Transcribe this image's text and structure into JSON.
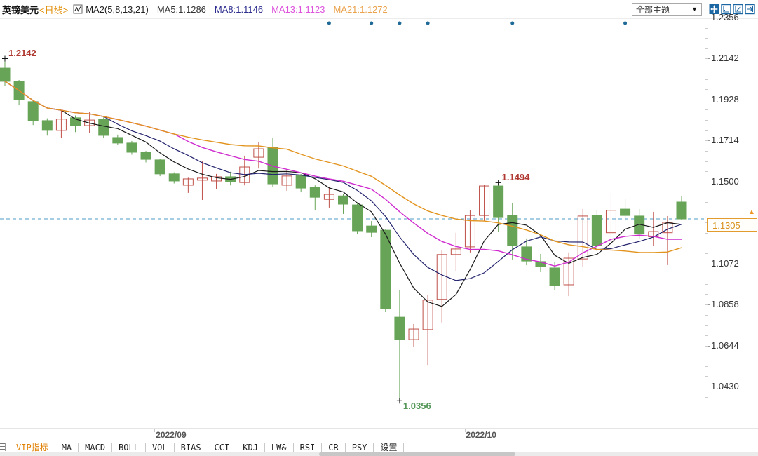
{
  "header": {
    "symbol": "英镑美元",
    "period": "<日线>",
    "ma_group": "MA2(5,8,13,21)",
    "ma5": "MA5:1.1286",
    "ma8": "MA8:1.1146",
    "ma13": "MA13:1.1123",
    "ma21": "MA21:1.1272",
    "theme_dropdown": "全部主题",
    "dropdown_arrow": "▼",
    "icons": [
      "move-icon",
      "axis-scale-icon",
      "axis-pointer-icon",
      "pan-right-icon"
    ]
  },
  "y_axis": {
    "labels": [
      "1.2356",
      "1.2142",
      "1.1928",
      "1.1714",
      "1.1500",
      "1.1072",
      "1.0858",
      "1.0644",
      "1.0430"
    ],
    "current_price": "1.1305"
  },
  "x_axis": {
    "labels": [
      {
        "text": "2022/09",
        "candle": 12
      },
      {
        "text": "2022/10",
        "candle": 34
      }
    ]
  },
  "annotations": [
    {
      "text": "1.2142",
      "price": 1.2142,
      "candle": 0,
      "type": "high",
      "color": "#b03a33"
    },
    {
      "text": "1.1494",
      "price": 1.1494,
      "candle": 35,
      "type": "high",
      "color": "#b03a33"
    },
    {
      "text": "1.0356",
      "price": 1.0356,
      "candle": 28,
      "type": "low",
      "color": "#56985a"
    }
  ],
  "toolbar": {
    "tabs": [
      {
        "label": "VIP指标",
        "active": true
      },
      {
        "label": "MA",
        "active": false
      },
      {
        "label": "MACD",
        "active": false
      },
      {
        "label": "BOLL",
        "active": false
      },
      {
        "label": "VOL",
        "active": false
      },
      {
        "label": "BIAS",
        "active": false
      },
      {
        "label": "CCI",
        "active": false
      },
      {
        "label": "KDJ",
        "active": false
      },
      {
        "label": "LW&",
        "active": false
      },
      {
        "label": "RSI",
        "active": false
      },
      {
        "label": "CR",
        "active": false
      },
      {
        "label": "PSY",
        "active": false
      },
      {
        "label": "设置",
        "active": false
      }
    ]
  },
  "colors": {
    "up_candle": "#bf5048",
    "down_candle": "#67a457",
    "ma5_line": "#1a1a1a",
    "ma8_line": "#24246e",
    "ma13_line": "#cf2bcf",
    "ma21_line": "#e2941e",
    "price_line": "#4f9bc7",
    "event_dot": "#1f6a96",
    "price_box": "#e39b2d",
    "active_tab": "#e07f00"
  },
  "chart_data": {
    "type": "candlestick",
    "title": "英镑美元 日线 (GBP/USD daily)",
    "y_ticks": [
      1.2356,
      1.2142,
      1.1928,
      1.1714,
      1.15,
      1.1072,
      1.0858,
      1.0644,
      1.043
    ],
    "current_price": 1.1305,
    "high_annotation": 1.2142,
    "swing_high_annotation": 1.1494,
    "low_annotation": 1.0356,
    "ma_periods": [
      5,
      8,
      13,
      21
    ],
    "legend_position": "top",
    "grid": false,
    "event_marker_candles": [
      23,
      26,
      28,
      30,
      36,
      44
    ],
    "candles": [
      {
        "o": 1.2092,
        "h": 1.2142,
        "l": 1.2001,
        "c": 1.2023
      },
      {
        "o": 1.2023,
        "h": 1.203,
        "l": 1.1898,
        "c": 1.1928
      },
      {
        "o": 1.1917,
        "h": 1.1925,
        "l": 1.1795,
        "c": 1.1818
      },
      {
        "o": 1.1818,
        "h": 1.183,
        "l": 1.174,
        "c": 1.1767
      },
      {
        "o": 1.1767,
        "h": 1.1873,
        "l": 1.1726,
        "c": 1.1826
      },
      {
        "o": 1.1833,
        "h": 1.1845,
        "l": 1.1758,
        "c": 1.1792
      },
      {
        "o": 1.1792,
        "h": 1.1862,
        "l": 1.1752,
        "c": 1.1821
      },
      {
        "o": 1.1825,
        "h": 1.1835,
        "l": 1.1726,
        "c": 1.1741
      },
      {
        "o": 1.173,
        "h": 1.1745,
        "l": 1.169,
        "c": 1.1701
      },
      {
        "o": 1.1701,
        "h": 1.1712,
        "l": 1.164,
        "c": 1.1653
      },
      {
        "o": 1.1653,
        "h": 1.166,
        "l": 1.16,
        "c": 1.1616
      },
      {
        "o": 1.1613,
        "h": 1.162,
        "l": 1.1528,
        "c": 1.154
      },
      {
        "o": 1.154,
        "h": 1.1548,
        "l": 1.149,
        "c": 1.1503
      },
      {
        "o": 1.1481,
        "h": 1.152,
        "l": 1.1441,
        "c": 1.1514
      },
      {
        "o": 1.1507,
        "h": 1.1605,
        "l": 1.1404,
        "c": 1.1518
      },
      {
        "o": 1.1503,
        "h": 1.154,
        "l": 1.146,
        "c": 1.1525
      },
      {
        "o": 1.1525,
        "h": 1.1551,
        "l": 1.148,
        "c": 1.1499
      },
      {
        "o": 1.1495,
        "h": 1.1635,
        "l": 1.148,
        "c": 1.1576
      },
      {
        "o": 1.1627,
        "h": 1.1704,
        "l": 1.1568,
        "c": 1.1671
      },
      {
        "o": 1.1679,
        "h": 1.173,
        "l": 1.1473,
        "c": 1.1488
      },
      {
        "o": 1.1481,
        "h": 1.1558,
        "l": 1.1452,
        "c": 1.1529
      },
      {
        "o": 1.1532,
        "h": 1.154,
        "l": 1.1444,
        "c": 1.1466
      },
      {
        "o": 1.147,
        "h": 1.148,
        "l": 1.1349,
        "c": 1.1418
      },
      {
        "o": 1.1407,
        "h": 1.1473,
        "l": 1.1364,
        "c": 1.1433
      },
      {
        "o": 1.1425,
        "h": 1.1435,
        "l": 1.1331,
        "c": 1.1382
      },
      {
        "o": 1.1378,
        "h": 1.139,
        "l": 1.1225,
        "c": 1.1243
      },
      {
        "o": 1.1268,
        "h": 1.1294,
        "l": 1.121,
        "c": 1.1235
      },
      {
        "o": 1.1246,
        "h": 1.125,
        "l": 1.0818,
        "c": 1.0836
      },
      {
        "o": 1.0792,
        "h": 1.0935,
        "l": 1.0356,
        "c": 1.0675
      },
      {
        "o": 1.0675,
        "h": 1.0756,
        "l": 1.0639,
        "c": 1.073
      },
      {
        "o": 1.0727,
        "h": 1.091,
        "l": 1.0543,
        "c": 1.0881
      },
      {
        "o": 1.0885,
        "h": 1.1141,
        "l": 1.0764,
        "c": 1.1119
      },
      {
        "o": 1.1119,
        "h": 1.1233,
        "l": 1.1031,
        "c": 1.1148
      },
      {
        "o": 1.1159,
        "h": 1.1349,
        "l": 1.113,
        "c": 1.1323
      },
      {
        "o": 1.1323,
        "h": 1.1481,
        "l": 1.1295,
        "c": 1.1477
      },
      {
        "o": 1.1477,
        "h": 1.1494,
        "l": 1.1239,
        "c": 1.1312
      },
      {
        "o": 1.1323,
        "h": 1.1386,
        "l": 1.1093,
        "c": 1.1166
      },
      {
        "o": 1.1159,
        "h": 1.1203,
        "l": 1.1063,
        "c": 1.1085
      },
      {
        "o": 1.1082,
        "h": 1.1122,
        "l": 1.1027,
        "c": 1.1056
      },
      {
        "o": 1.1049,
        "h": 1.1078,
        "l": 1.0935,
        "c": 1.0957
      },
      {
        "o": 1.0961,
        "h": 1.113,
        "l": 1.0902,
        "c": 1.11
      },
      {
        "o": 1.1096,
        "h": 1.1357,
        "l": 1.1056,
        "c": 1.132
      },
      {
        "o": 1.1323,
        "h": 1.1349,
        "l": 1.1137,
        "c": 1.1166
      },
      {
        "o": 1.1233,
        "h": 1.1441,
        "l": 1.1203,
        "c": 1.135
      },
      {
        "o": 1.1356,
        "h": 1.1411,
        "l": 1.1294,
        "c": 1.1323
      },
      {
        "o": 1.132,
        "h": 1.1357,
        "l": 1.1203,
        "c": 1.1226
      },
      {
        "o": 1.1212,
        "h": 1.1342,
        "l": 1.1166,
        "c": 1.1239
      },
      {
        "o": 1.1233,
        "h": 1.132,
        "l": 1.1064,
        "c": 1.1287
      },
      {
        "o": 1.1393,
        "h": 1.1422,
        "l": 1.13,
        "c": 1.1305
      }
    ]
  }
}
